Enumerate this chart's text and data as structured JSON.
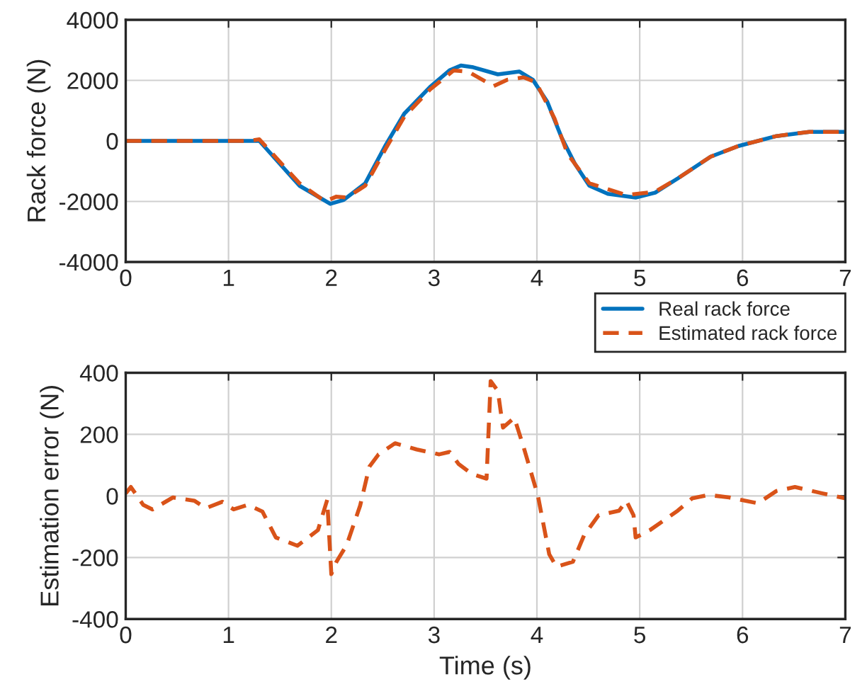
{
  "chart_data": [
    {
      "type": "line",
      "ylabel": "Rack force (N)",
      "xlim": [
        0,
        7
      ],
      "xticks": [
        0,
        1,
        2,
        3,
        4,
        5,
        6,
        7
      ],
      "ylim": [
        -4000,
        4000
      ],
      "yticks": [
        -4000,
        -2000,
        0,
        2000,
        4000
      ],
      "grid": true,
      "legend": "bottom right",
      "series": [
        {
          "name": "Real rack force",
          "color": "#0072bd",
          "line_style": "solid",
          "x": [
            0,
            0.6,
            1.2,
            1.3,
            1.69,
            1.99,
            2.12,
            2.33,
            2.53,
            2.71,
            2.96,
            3.15,
            3.26,
            3.37,
            3.62,
            3.83,
            3.96,
            4.1,
            4.24,
            4.37,
            4.51,
            4.69,
            4.96,
            5.15,
            5.37,
            5.69,
            5.96,
            6.33,
            6.65,
            7
          ],
          "values": [
            0,
            0,
            0,
            0,
            -1480,
            -2080,
            -1950,
            -1400,
            -130,
            900,
            1780,
            2330,
            2490,
            2440,
            2200,
            2290,
            2020,
            1300,
            110,
            -760,
            -1480,
            -1750,
            -1870,
            -1710,
            -1240,
            -520,
            -170,
            160,
            300,
            300
          ]
        },
        {
          "name": "Estimated rack force",
          "color": "#d95319",
          "line_style": "dashed",
          "x": [
            0,
            0.6,
            1.2,
            1.3,
            1.69,
            1.94,
            2.05,
            2.15,
            2.33,
            2.53,
            2.71,
            2.96,
            3.19,
            3.33,
            3.58,
            3.71,
            3.87,
            3.99,
            4.17,
            4.3,
            4.51,
            4.87,
            5.15,
            5.37,
            5.69,
            5.96,
            6.33,
            6.65,
            7
          ],
          "values": [
            0,
            0,
            0,
            50,
            -1400,
            -2000,
            -1840,
            -1870,
            -1480,
            -250,
            800,
            1700,
            2330,
            2290,
            1810,
            2020,
            2100,
            1940,
            750,
            -440,
            -1400,
            -1790,
            -1680,
            -1240,
            -520,
            -170,
            160,
            300,
            300
          ]
        }
      ]
    },
    {
      "type": "line",
      "xlabel": "Time (s)",
      "ylabel": "Estimation error (N)",
      "xlim": [
        0,
        7
      ],
      "xticks": [
        0,
        1,
        2,
        3,
        4,
        5,
        6,
        7
      ],
      "ylim": [
        -400,
        400
      ],
      "yticks": [
        -400,
        -200,
        0,
        200,
        400
      ],
      "grid": true,
      "series": [
        {
          "color": "#d95319",
          "line_style": "dashed",
          "x": [
            0,
            0.05,
            0.17,
            0.26,
            0.46,
            0.67,
            0.78,
            0.94,
            1.05,
            1.19,
            1.33,
            1.46,
            1.67,
            1.87,
            1.96,
            2.0,
            2.05,
            2.15,
            2.28,
            2.37,
            2.46,
            2.62,
            2.83,
            3.05,
            3.15,
            3.24,
            3.37,
            3.51,
            3.55,
            3.62,
            3.67,
            3.78,
            3.87,
            4.01,
            4.12,
            4.19,
            4.35,
            4.46,
            4.6,
            4.8,
            4.87,
            4.94,
            4.96,
            5.1,
            5.37,
            5.51,
            5.67,
            5.87,
            6.15,
            6.33,
            6.51,
            6.78,
            7
          ],
          "values": [
            8,
            29,
            -29,
            -44,
            -5,
            -16,
            -40,
            -19,
            -44,
            -29,
            -51,
            -135,
            -162,
            -111,
            -13,
            -254,
            -214,
            -159,
            -32,
            95,
            135,
            171,
            151,
            135,
            143,
            103,
            71,
            56,
            373,
            341,
            222,
            254,
            159,
            0,
            -190,
            -230,
            -214,
            -127,
            -63,
            -48,
            -16,
            -63,
            -135,
            -111,
            -48,
            -8,
            3,
            -5,
            -24,
            16,
            29,
            8,
            -8
          ]
        }
      ]
    }
  ]
}
